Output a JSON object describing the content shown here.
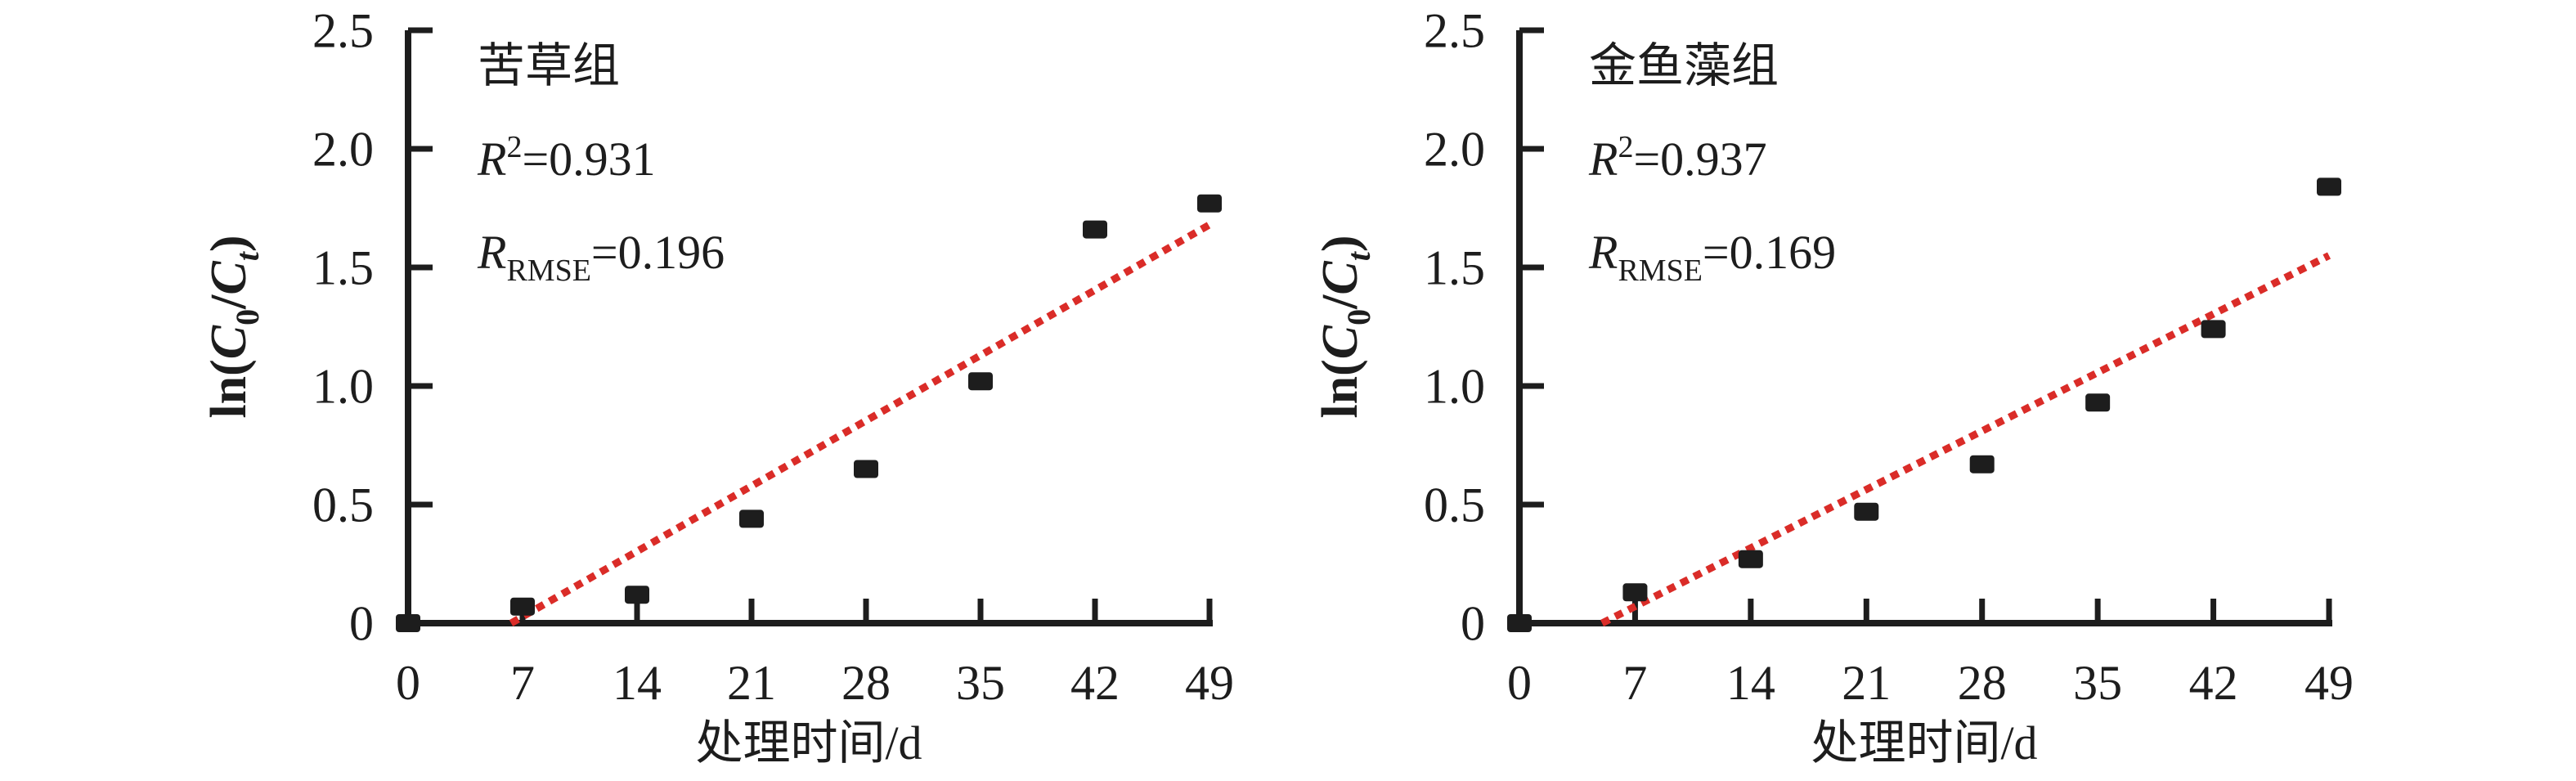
{
  "figure": {
    "background": "#ffffff",
    "axis_color": "#1d1d1d",
    "text_color": "#1d1d1d"
  },
  "chart_data": [
    {
      "type": "scatter",
      "title": "苦草组",
      "stats": {
        "r2": "0.931",
        "rmse": "0.196"
      },
      "annotation_lines": [
        {
          "parts": [
            {
              "t": "苦草组"
            }
          ]
        },
        {
          "parts": [
            {
              "t": "R",
              "style": "italic"
            },
            {
              "t": "2",
              "shift": "sup"
            },
            {
              "t": "=0.931"
            }
          ]
        },
        {
          "parts": [
            {
              "t": "R",
              "style": "italic"
            },
            {
              "t": "RMSE",
              "shift": "sub"
            },
            {
              "t": "=0.196"
            }
          ]
        }
      ],
      "xlabel": "处理时间/d",
      "ylabel": "ln(C0/Ct)",
      "ylabel_parts": [
        {
          "t": "ln("
        },
        {
          "t": "C",
          "style": "italic"
        },
        {
          "t": "0",
          "shift": "sub"
        },
        {
          "t": "/"
        },
        {
          "t": "C",
          "style": "italic"
        },
        {
          "t": "t",
          "style": "italic",
          "shift": "sub"
        },
        {
          "t": ")"
        }
      ],
      "x": [
        0,
        7,
        14,
        21,
        28,
        35,
        42,
        49
      ],
      "y": [
        0,
        0.07,
        0.12,
        0.44,
        0.65,
        1.02,
        1.66,
        1.77
      ],
      "x_ticks": [
        "0",
        "7",
        "14",
        "21",
        "28",
        "35",
        "42",
        "49"
      ],
      "y_ticks": [
        "0",
        "0.5",
        "1.0",
        "1.5",
        "2.0",
        "2.5"
      ],
      "xlim": [
        0,
        49
      ],
      "ylim": [
        0,
        2.5
      ],
      "grid": false,
      "legend": null,
      "marker": {
        "shape": "square",
        "color": "#1d1d1d"
      },
      "fit_line": {
        "x1": 6.3,
        "y1": 0,
        "x2": 49,
        "y2": 1.68,
        "style": "dotted",
        "color": "#da2c28"
      }
    },
    {
      "type": "scatter",
      "title": "金鱼藻组",
      "stats": {
        "r2": "0.937",
        "rmse": "0.169"
      },
      "annotation_lines": [
        {
          "parts": [
            {
              "t": "金鱼藻组"
            }
          ]
        },
        {
          "parts": [
            {
              "t": "R",
              "style": "italic"
            },
            {
              "t": "2",
              "shift": "sup"
            },
            {
              "t": "=0.937"
            }
          ]
        },
        {
          "parts": [
            {
              "t": "R",
              "style": "italic"
            },
            {
              "t": "RMSE",
              "shift": "sub"
            },
            {
              "t": "=0.169"
            }
          ]
        }
      ],
      "xlabel": "处理时间/d",
      "ylabel": "ln(C0/Ct)",
      "ylabel_parts": [
        {
          "t": "ln("
        },
        {
          "t": "C",
          "style": "italic"
        },
        {
          "t": "0",
          "shift": "sub"
        },
        {
          "t": "/"
        },
        {
          "t": "C",
          "style": "italic"
        },
        {
          "t": "t",
          "style": "italic",
          "shift": "sub"
        },
        {
          "t": ")"
        }
      ],
      "x": [
        0,
        7,
        14,
        21,
        28,
        35,
        42,
        49
      ],
      "y": [
        0,
        0.13,
        0.27,
        0.47,
        0.67,
        0.93,
        1.24,
        1.84
      ],
      "x_ticks": [
        "0",
        "7",
        "14",
        "21",
        "28",
        "35",
        "42",
        "49"
      ],
      "y_ticks": [
        "0",
        "0.5",
        "1.0",
        "1.5",
        "2.0",
        "2.5"
      ],
      "xlim": [
        0,
        49
      ],
      "ylim": [
        0,
        2.5
      ],
      "grid": false,
      "legend": null,
      "marker": {
        "shape": "square",
        "color": "#1d1d1d"
      },
      "fit_line": {
        "x1": 5.0,
        "y1": 0,
        "x2": 49,
        "y2": 1.55,
        "style": "dotted",
        "color": "#da2c28"
      }
    }
  ]
}
